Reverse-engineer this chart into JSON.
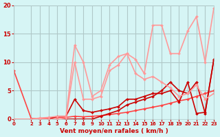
{
  "bg_color": "#d6f5f5",
  "grid_color": "#b0c8c8",
  "xlabel": "Vent moyen/en rafales ( km/h )",
  "ylabel": "",
  "xlim": [
    0,
    23
  ],
  "ylim": [
    0,
    20
  ],
  "xticks": [
    0,
    2,
    3,
    4,
    5,
    6,
    7,
    8,
    9,
    10,
    11,
    12,
    13,
    14,
    15,
    16,
    17,
    18,
    19,
    20,
    21,
    22,
    23
  ],
  "yticks": [
    0,
    5,
    10,
    15,
    20
  ],
  "series": [
    {
      "x": [
        0,
        2,
        3,
        4,
        5,
        6,
        7,
        8,
        9,
        10,
        11,
        12,
        13,
        14,
        15,
        16,
        17,
        18,
        19,
        20,
        21,
        22,
        23
      ],
      "y": [
        8.5,
        0.1,
        0.1,
        0.2,
        0.3,
        0.3,
        0.5,
        0.4,
        0.5,
        0.6,
        0.8,
        1.0,
        1.2,
        1.5,
        1.8,
        2.1,
        2.4,
        2.8,
        3.2,
        3.5,
        4.0,
        4.5,
        5.0
      ],
      "color": "#ff4444",
      "lw": 1.2,
      "marker": "D",
      "ms": 2
    },
    {
      "x": [
        0,
        2,
        3,
        4,
        5,
        6,
        7,
        8,
        9,
        10,
        11,
        12,
        13,
        14,
        15,
        16,
        17,
        18,
        19,
        20,
        21,
        22,
        23
      ],
      "y": [
        0,
        0,
        0,
        0,
        0,
        0,
        0,
        0,
        0,
        0.5,
        1.0,
        1.5,
        2.5,
        3.0,
        3.5,
        4.0,
        5.0,
        6.5,
        5.0,
        4.5,
        6.5,
        1.0,
        10.5
      ],
      "color": "#cc0000",
      "lw": 1.2,
      "marker": "D",
      "ms": 2
    },
    {
      "x": [
        0,
        2,
        3,
        4,
        5,
        6,
        7,
        8,
        9,
        10,
        11,
        12,
        13,
        14,
        15,
        16,
        17,
        18,
        19,
        20,
        21,
        22,
        23
      ],
      "y": [
        0,
        0,
        0,
        0,
        0.5,
        0.5,
        3.5,
        1.5,
        1.2,
        1.5,
        1.8,
        2.2,
        3.5,
        3.5,
        4.0,
        4.5,
        4.5,
        5.0,
        3.0,
        6.5,
        1.0,
        1.2,
        10.5
      ],
      "color": "#cc0000",
      "lw": 1.2,
      "marker": "D",
      "ms": 2
    },
    {
      "x": [
        0,
        2,
        3,
        4,
        5,
        6,
        7,
        8,
        9,
        10,
        11,
        12,
        13,
        14,
        15,
        16,
        17,
        18,
        19,
        20,
        21,
        22,
        23
      ],
      "y": [
        0,
        0,
        0,
        0,
        0,
        0.2,
        10.0,
        3.5,
        3.5,
        4.0,
        8.5,
        9.5,
        11.5,
        8.0,
        7.0,
        7.5,
        6.5,
        5.5,
        4.0,
        4.5,
        6.0,
        3.5,
        4.5
      ],
      "color": "#ff9999",
      "lw": 1.2,
      "marker": "D",
      "ms": 2
    },
    {
      "x": [
        0,
        2,
        3,
        4,
        5,
        6,
        7,
        8,
        9,
        10,
        11,
        12,
        13,
        14,
        15,
        16,
        17,
        18,
        19,
        20,
        21,
        22,
        23
      ],
      "y": [
        0,
        0,
        0.2,
        0.3,
        0.5,
        0.5,
        13.0,
        10.0,
        4.0,
        5.0,
        9.5,
        11.0,
        11.5,
        10.5,
        8.0,
        16.5,
        16.5,
        11.5,
        11.5,
        15.5,
        18.0,
        10.0,
        19.5
      ],
      "color": "#ff9999",
      "lw": 1.2,
      "marker": "D",
      "ms": 2
    }
  ],
  "arrow_color": "#cc0000",
  "xlabel_color": "#cc0000",
  "tick_color": "#cc0000",
  "title_color": "#cc0000"
}
